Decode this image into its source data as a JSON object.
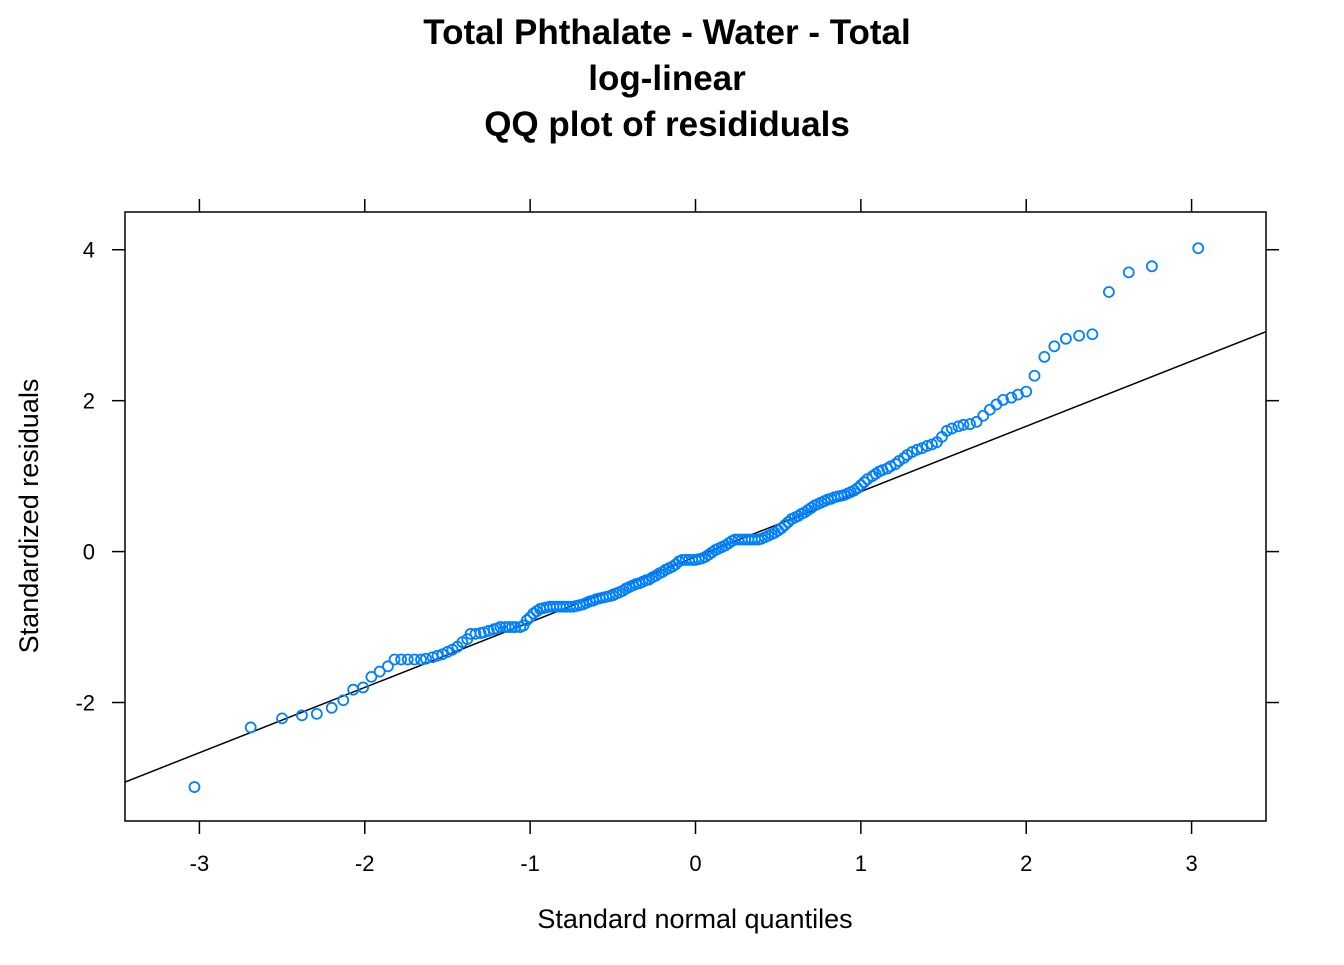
{
  "chart_data": {
    "type": "scatter",
    "title_lines": [
      "Total Phthalate - Water - Total",
      "log-linear",
      "QQ plot of resididuals"
    ],
    "xlabel": "Standard normal quantiles",
    "ylabel": "Standardized residuals",
    "xlim": [
      -3.45,
      3.45
    ],
    "ylim": [
      -3.57,
      4.5
    ],
    "x_ticks": [
      -3,
      -2,
      -1,
      0,
      1,
      2,
      3
    ],
    "x_tick_labels": [
      "-3",
      "-2",
      "-1",
      "0",
      "1",
      "2",
      "3"
    ],
    "y_ticks": [
      -2,
      0,
      2,
      4
    ],
    "y_tick_labels": [
      "-2",
      "0",
      "2",
      "4"
    ],
    "point_color": "#0080ff",
    "line_color": "#000000",
    "reference_line": {
      "intercept": -0.07,
      "slope": 0.865
    },
    "points": [
      [
        -3.03,
        -3.12
      ],
      [
        -2.69,
        -2.33
      ],
      [
        -2.5,
        -2.21
      ],
      [
        -2.38,
        -2.17
      ],
      [
        -2.29,
        -2.15
      ],
      [
        -2.2,
        -2.07
      ],
      [
        -2.13,
        -1.97
      ],
      [
        -2.07,
        -1.83
      ],
      [
        -2.01,
        -1.8
      ],
      [
        -1.96,
        -1.66
      ],
      [
        -1.91,
        -1.59
      ],
      [
        -1.86,
        -1.52
      ],
      [
        -1.82,
        -1.43
      ],
      [
        -1.78,
        -1.43
      ],
      [
        -1.74,
        -1.43
      ],
      [
        -1.7,
        -1.43
      ],
      [
        -1.66,
        -1.43
      ],
      [
        -1.63,
        -1.42
      ],
      [
        -1.59,
        -1.4
      ],
      [
        -1.56,
        -1.38
      ],
      [
        -1.53,
        -1.36
      ],
      [
        -1.5,
        -1.33
      ],
      [
        -1.47,
        -1.3
      ],
      [
        -1.44,
        -1.26
      ],
      [
        -1.41,
        -1.2
      ],
      [
        -1.38,
        -1.16
      ],
      [
        -1.36,
        -1.09
      ],
      [
        -1.33,
        -1.09
      ],
      [
        -1.3,
        -1.08
      ],
      [
        -1.28,
        -1.07
      ],
      [
        -1.25,
        -1.05
      ],
      [
        -1.22,
        -1.03
      ],
      [
        -1.2,
        -1.02
      ],
      [
        -1.18,
        -1.0
      ],
      [
        -1.15,
        -1.0
      ],
      [
        -1.13,
        -1.0
      ],
      [
        -1.11,
        -1.0
      ],
      [
        -1.09,
        -1.0
      ],
      [
        -1.06,
        -1.0
      ],
      [
        -1.04,
        -0.98
      ],
      [
        -1.02,
        -0.91
      ],
      [
        -1.0,
        -0.87
      ],
      [
        -0.98,
        -0.82
      ],
      [
        -0.96,
        -0.79
      ],
      [
        -0.94,
        -0.76
      ],
      [
        -0.92,
        -0.75
      ],
      [
        -0.9,
        -0.74
      ],
      [
        -0.88,
        -0.73
      ],
      [
        -0.86,
        -0.73
      ],
      [
        -0.84,
        -0.73
      ],
      [
        -0.82,
        -0.73
      ],
      [
        -0.8,
        -0.73
      ],
      [
        -0.78,
        -0.73
      ],
      [
        -0.76,
        -0.73
      ],
      [
        -0.74,
        -0.73
      ],
      [
        -0.72,
        -0.72
      ],
      [
        -0.7,
        -0.71
      ],
      [
        -0.68,
        -0.7
      ],
      [
        -0.66,
        -0.68
      ],
      [
        -0.64,
        -0.66
      ],
      [
        -0.62,
        -0.65
      ],
      [
        -0.6,
        -0.63
      ],
      [
        -0.58,
        -0.62
      ],
      [
        -0.56,
        -0.61
      ],
      [
        -0.54,
        -0.6
      ],
      [
        -0.52,
        -0.59
      ],
      [
        -0.5,
        -0.58
      ],
      [
        -0.48,
        -0.56
      ],
      [
        -0.46,
        -0.54
      ],
      [
        -0.44,
        -0.52
      ],
      [
        -0.42,
        -0.49
      ],
      [
        -0.4,
        -0.47
      ],
      [
        -0.38,
        -0.45
      ],
      [
        -0.36,
        -0.43
      ],
      [
        -0.34,
        -0.42
      ],
      [
        -0.32,
        -0.4
      ],
      [
        -0.3,
        -0.38
      ],
      [
        -0.28,
        -0.37
      ],
      [
        -0.26,
        -0.34
      ],
      [
        -0.24,
        -0.32
      ],
      [
        -0.22,
        -0.29
      ],
      [
        -0.2,
        -0.27
      ],
      [
        -0.18,
        -0.24
      ],
      [
        -0.16,
        -0.22
      ],
      [
        -0.14,
        -0.2
      ],
      [
        -0.12,
        -0.17
      ],
      [
        -0.1,
        -0.13
      ],
      [
        -0.08,
        -0.11
      ],
      [
        -0.06,
        -0.11
      ],
      [
        -0.04,
        -0.11
      ],
      [
        -0.02,
        -0.11
      ],
      [
        0.0,
        -0.11
      ],
      [
        0.02,
        -0.1
      ],
      [
        0.04,
        -0.09
      ],
      [
        0.06,
        -0.07
      ],
      [
        0.08,
        -0.04
      ],
      [
        0.1,
        -0.01
      ],
      [
        0.12,
        0.02
      ],
      [
        0.14,
        0.04
      ],
      [
        0.16,
        0.06
      ],
      [
        0.18,
        0.08
      ],
      [
        0.2,
        0.11
      ],
      [
        0.22,
        0.14
      ],
      [
        0.24,
        0.16
      ],
      [
        0.26,
        0.16
      ],
      [
        0.28,
        0.16
      ],
      [
        0.3,
        0.16
      ],
      [
        0.32,
        0.16
      ],
      [
        0.34,
        0.16
      ],
      [
        0.36,
        0.16
      ],
      [
        0.38,
        0.16
      ],
      [
        0.4,
        0.17
      ],
      [
        0.42,
        0.19
      ],
      [
        0.44,
        0.21
      ],
      [
        0.46,
        0.23
      ],
      [
        0.48,
        0.25
      ],
      [
        0.5,
        0.28
      ],
      [
        0.52,
        0.31
      ],
      [
        0.54,
        0.35
      ],
      [
        0.56,
        0.39
      ],
      [
        0.58,
        0.43
      ],
      [
        0.6,
        0.45
      ],
      [
        0.62,
        0.47
      ],
      [
        0.64,
        0.5
      ],
      [
        0.66,
        0.52
      ],
      [
        0.68,
        0.55
      ],
      [
        0.7,
        0.58
      ],
      [
        0.72,
        0.61
      ],
      [
        0.74,
        0.63
      ],
      [
        0.76,
        0.65
      ],
      [
        0.78,
        0.67
      ],
      [
        0.8,
        0.69
      ],
      [
        0.82,
        0.7
      ],
      [
        0.84,
        0.72
      ],
      [
        0.86,
        0.73
      ],
      [
        0.88,
        0.74
      ],
      [
        0.9,
        0.75
      ],
      [
        0.92,
        0.77
      ],
      [
        0.94,
        0.79
      ],
      [
        0.96,
        0.81
      ],
      [
        0.98,
        0.84
      ],
      [
        1.0,
        0.88
      ],
      [
        1.02,
        0.92
      ],
      [
        1.04,
        0.96
      ],
      [
        1.07,
        1.0
      ],
      [
        1.09,
        1.03
      ],
      [
        1.11,
        1.06
      ],
      [
        1.13,
        1.08
      ],
      [
        1.16,
        1.1
      ],
      [
        1.18,
        1.13
      ],
      [
        1.21,
        1.16
      ],
      [
        1.23,
        1.2
      ],
      [
        1.26,
        1.24
      ],
      [
        1.28,
        1.28
      ],
      [
        1.31,
        1.32
      ],
      [
        1.34,
        1.35
      ],
      [
        1.37,
        1.37
      ],
      [
        1.4,
        1.4
      ],
      [
        1.43,
        1.42
      ],
      [
        1.46,
        1.45
      ],
      [
        1.49,
        1.52
      ],
      [
        1.52,
        1.6
      ],
      [
        1.55,
        1.63
      ],
      [
        1.59,
        1.66
      ],
      [
        1.62,
        1.68
      ],
      [
        1.66,
        1.69
      ],
      [
        1.7,
        1.72
      ],
      [
        1.74,
        1.8
      ],
      [
        1.78,
        1.88
      ],
      [
        1.82,
        1.95
      ],
      [
        1.86,
        2.01
      ],
      [
        1.91,
        2.04
      ],
      [
        1.95,
        2.08
      ],
      [
        2.0,
        2.12
      ],
      [
        2.05,
        2.33
      ],
      [
        2.11,
        2.58
      ],
      [
        2.17,
        2.72
      ],
      [
        2.24,
        2.82
      ],
      [
        2.32,
        2.86
      ],
      [
        2.4,
        2.88
      ],
      [
        2.5,
        3.44
      ],
      [
        2.62,
        3.7
      ],
      [
        2.76,
        3.78
      ],
      [
        3.04,
        4.02
      ]
    ]
  }
}
